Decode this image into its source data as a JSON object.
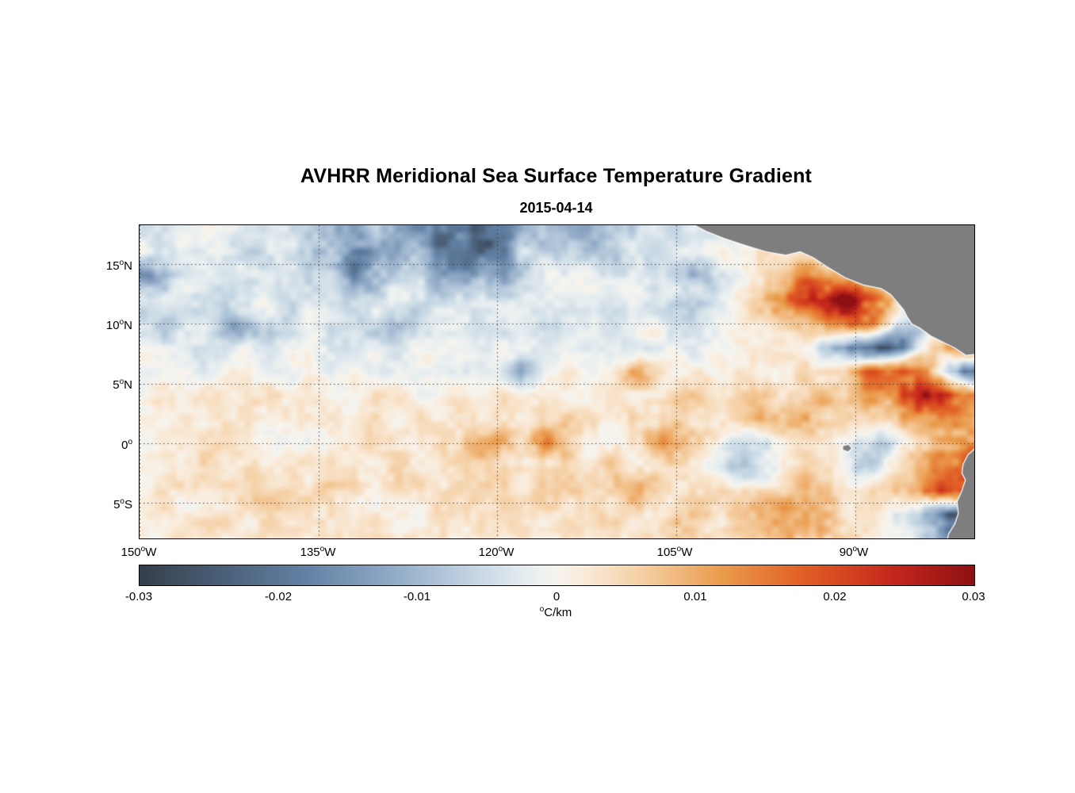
{
  "title": "AVHRR Meridional Sea Surface Temperature Gradient",
  "subtitle": "2015-04-14",
  "axes": {
    "deg": "o",
    "lat_ticks": [
      {
        "num": "15",
        "hem": "N"
      },
      {
        "num": "10",
        "hem": "N"
      },
      {
        "num": "5",
        "hem": "N"
      },
      {
        "num": "0",
        "hem": ""
      },
      {
        "num": "5",
        "hem": "S"
      }
    ],
    "lon_ticks": [
      {
        "num": "150",
        "hem": "W"
      },
      {
        "num": "135",
        "hem": "W"
      },
      {
        "num": "120",
        "hem": "W"
      },
      {
        "num": "105",
        "hem": "W"
      },
      {
        "num": "90",
        "hem": "W"
      }
    ]
  },
  "colorbar": {
    "ticks": [
      "-0.03",
      "-0.02",
      "-0.01",
      "0",
      "0.01",
      "0.02",
      "0.03"
    ],
    "unit_deg": "o",
    "unit": "C/km"
  },
  "chart_data": {
    "type": "heatmap",
    "title": "AVHRR Meridional Sea Surface Temperature Gradient",
    "subtitle": "2015-04-14",
    "units": "°C/km",
    "lon_west_range": [
      150,
      80
    ],
    "lat_range": [
      -8,
      18.27
    ],
    "lon_gridlines_w": [
      150,
      135,
      120,
      105,
      90
    ],
    "lat_gridlines": [
      15,
      10,
      5,
      0,
      -5
    ],
    "colorbar_range": [
      -0.03,
      0.03
    ],
    "colormap": [
      [
        -0.03,
        "#353f4b"
      ],
      [
        -0.024,
        "#4a5f78"
      ],
      [
        -0.018,
        "#6381a4"
      ],
      [
        -0.012,
        "#8fa9c6"
      ],
      [
        -0.006,
        "#c4d5e3"
      ],
      [
        -0.002,
        "#e7eef0"
      ],
      [
        0.0,
        "#f6f4ee"
      ],
      [
        0.002,
        "#f9ead8"
      ],
      [
        0.006,
        "#f5d0a5"
      ],
      [
        0.012,
        "#ea9a4b"
      ],
      [
        0.018,
        "#e05c24"
      ],
      [
        0.024,
        "#c5281c"
      ],
      [
        0.03,
        "#8e1013"
      ]
    ],
    "grid": {
      "scale": 0.001,
      "lon_w_start": 150,
      "lon_w_step": -2,
      "lat_start": 18,
      "lat_step": -2,
      "values": [
        [
          -2,
          -3,
          -2,
          -1,
          -3,
          -4,
          -3,
          -5,
          -8,
          -10,
          -8,
          -12,
          -18,
          -24,
          -26,
          -20,
          -12,
          -10,
          -14,
          -10,
          -6,
          -4,
          -5,
          -4,
          -3,
          -2,
          -2,
          -1,
          0,
          0,
          0,
          0,
          0,
          0,
          0,
          0
        ],
        [
          -2,
          -2,
          -4,
          -3,
          -6,
          -8,
          -6,
          -10,
          -12,
          -20,
          -16,
          -10,
          -14,
          -18,
          -22,
          -16,
          -8,
          -6,
          -8,
          -6,
          -8,
          -5,
          -3,
          -2,
          0,
          2,
          6,
          4,
          2,
          0,
          0,
          0,
          0,
          0,
          0,
          0
        ],
        [
          -14,
          -10,
          -4,
          -3,
          -2,
          -4,
          -3,
          -6,
          -8,
          -14,
          -12,
          -6,
          -8,
          -10,
          -12,
          -10,
          -8,
          -4,
          -2,
          -3,
          -5,
          -3,
          -4,
          -9,
          -8,
          -2,
          3,
          8,
          12,
          10,
          4,
          2,
          0,
          0,
          0,
          0
        ],
        [
          -3,
          -2,
          -3,
          -5,
          -3,
          -2,
          -4,
          -3,
          -5,
          -6,
          -4,
          -3,
          -5,
          -4,
          -6,
          -4,
          -3,
          -2,
          -3,
          -2,
          -3,
          -2,
          -2,
          -8,
          -6,
          2,
          8,
          14,
          20,
          27,
          25,
          15,
          5,
          0,
          0,
          0
        ],
        [
          -4,
          -6,
          -3,
          -4,
          -10,
          -6,
          -3,
          -2,
          -4,
          -3,
          -6,
          -8,
          -5,
          -3,
          -4,
          -3,
          -2,
          -4,
          -2,
          -1,
          -2,
          -1,
          -2,
          -3,
          -2,
          0,
          2,
          4,
          6,
          10,
          16,
          14,
          -6,
          -10,
          2,
          8
        ],
        [
          -2,
          -3,
          -2,
          -4,
          -3,
          -2,
          -3,
          -2,
          -3,
          -2,
          -4,
          -3,
          -2,
          -3,
          -2,
          -2,
          -1,
          -2,
          -1,
          -2,
          -1,
          -2,
          -1,
          -2,
          -1,
          0,
          1,
          2,
          0,
          -8,
          -20,
          -26,
          -18,
          5,
          15,
          20
        ],
        [
          -1,
          -2,
          -1,
          -2,
          -1,
          -2,
          -1,
          -1,
          -2,
          -1,
          -2,
          -1,
          -1,
          -2,
          -1,
          -3,
          -11,
          -2,
          0,
          1,
          2,
          9,
          2,
          1,
          2,
          1,
          3,
          2,
          4,
          6,
          10,
          18,
          22,
          16,
          -10,
          -22
        ],
        [
          1,
          2,
          1,
          2,
          1,
          2,
          3,
          2,
          1,
          2,
          3,
          2,
          1,
          2,
          1,
          2,
          1,
          2,
          3,
          2,
          3,
          4,
          3,
          4,
          5,
          4,
          5,
          6,
          5,
          6,
          8,
          12,
          20,
          26,
          24,
          14
        ],
        [
          2,
          1,
          2,
          3,
          2,
          3,
          2,
          3,
          2,
          3,
          4,
          3,
          2,
          3,
          4,
          3,
          4,
          3,
          4,
          3,
          4,
          5,
          4,
          5,
          6,
          5,
          6,
          8,
          10,
          6,
          4,
          6,
          10,
          14,
          10,
          6
        ],
        [
          1,
          2,
          1,
          2,
          3,
          2,
          1,
          2,
          3,
          2,
          3,
          2,
          3,
          4,
          10,
          8,
          3,
          12,
          6,
          2,
          3,
          4,
          10,
          6,
          2,
          -4,
          -6,
          0,
          2,
          1,
          -6,
          -9,
          2,
          8,
          14,
          16
        ],
        [
          2,
          3,
          2,
          3,
          2,
          4,
          3,
          2,
          3,
          4,
          3,
          4,
          3,
          4,
          3,
          4,
          5,
          4,
          3,
          4,
          5,
          4,
          5,
          3,
          -2,
          -9,
          -7,
          1,
          3,
          2,
          -7,
          -5,
          4,
          8,
          18,
          16
        ],
        [
          2,
          3,
          3,
          4,
          3,
          4,
          5,
          6,
          5,
          4,
          3,
          4,
          3,
          4,
          5,
          4,
          3,
          4,
          5,
          4,
          5,
          9,
          6,
          4,
          3,
          4,
          5,
          4,
          6,
          8,
          5,
          4,
          6,
          12,
          24,
          20
        ],
        [
          1,
          2,
          2,
          3,
          2,
          3,
          2,
          3,
          4,
          3,
          2,
          3,
          2,
          3,
          4,
          3,
          2,
          3,
          2,
          3,
          4,
          3,
          4,
          7,
          5,
          4,
          6,
          9,
          10,
          6,
          3,
          2,
          -4,
          -14,
          -24,
          -20
        ],
        [
          1,
          1,
          2,
          2,
          1,
          2,
          3,
          2,
          3,
          2,
          3,
          2,
          3,
          2,
          3,
          2,
          3,
          2,
          3,
          2,
          3,
          4,
          3,
          4,
          3,
          4,
          5,
          8,
          9,
          5,
          3,
          2,
          0,
          -6,
          -16,
          -12
        ]
      ]
    },
    "land_color": "#7e7e7e",
    "land_polygons": [
      [
        [
          104.0,
          18.6
        ],
        [
          102.5,
          17.8
        ],
        [
          101.0,
          17.2
        ],
        [
          99.5,
          16.7
        ],
        [
          97.5,
          16.1
        ],
        [
          95.8,
          15.8
        ],
        [
          94.6,
          16.1
        ],
        [
          93.5,
          15.6
        ],
        [
          92.3,
          14.8
        ],
        [
          90.8,
          13.9
        ],
        [
          89.3,
          13.3
        ],
        [
          87.8,
          13.0
        ],
        [
          87.0,
          12.5
        ],
        [
          86.4,
          11.8
        ],
        [
          85.9,
          11.2
        ],
        [
          85.6,
          10.6
        ],
        [
          85.2,
          10.0
        ],
        [
          84.6,
          9.7
        ],
        [
          83.6,
          9.0
        ],
        [
          82.6,
          8.5
        ],
        [
          81.6,
          8.0
        ],
        [
          80.7,
          7.4
        ],
        [
          79.7,
          7.5
        ],
        [
          79.7,
          18.6
        ]
      ],
      [
        [
          79.7,
          -0.3
        ],
        [
          80.5,
          -1.0
        ],
        [
          80.9,
          -1.8
        ],
        [
          81.0,
          -2.5
        ],
        [
          80.7,
          -3.1
        ],
        [
          81.0,
          -4.0
        ],
        [
          81.4,
          -4.9
        ],
        [
          81.3,
          -5.9
        ],
        [
          81.6,
          -6.8
        ],
        [
          82.1,
          -7.6
        ],
        [
          82.3,
          -8.3
        ],
        [
          79.7,
          -8.3
        ]
      ],
      [
        [
          91.0,
          -0.25
        ],
        [
          90.55,
          -0.15
        ],
        [
          90.3,
          -0.45
        ],
        [
          90.6,
          -0.7
        ],
        [
          91.0,
          -0.55
        ]
      ]
    ]
  }
}
